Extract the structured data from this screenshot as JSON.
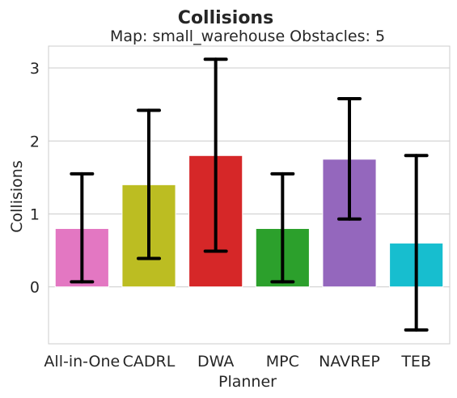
{
  "chart_data": {
    "type": "bar",
    "title": "Collisions",
    "subtitle": "Map: small_warehouse Obstacles: 5",
    "xlabel": "Planner",
    "ylabel": "Collisions",
    "ylim": [
      -0.78,
      3.3
    ],
    "yticks": [
      0,
      1,
      2,
      3
    ],
    "grid": true,
    "categories": [
      "All-in-One",
      "CADRL",
      "DWA",
      "MPC",
      "NAVREP",
      "TEB"
    ],
    "values": [
      0.8,
      1.4,
      1.8,
      0.8,
      1.75,
      0.6
    ],
    "error_low": [
      0.07,
      0.39,
      0.49,
      0.07,
      0.93,
      -0.59
    ],
    "error_high": [
      1.55,
      2.42,
      3.12,
      1.55,
      2.58,
      1.8
    ],
    "colors": [
      "#e377c2",
      "#bcbd22",
      "#d62728",
      "#2ca02c",
      "#9467bd",
      "#17becf"
    ]
  }
}
